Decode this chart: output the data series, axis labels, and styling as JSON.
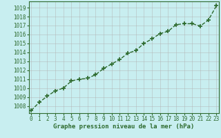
{
  "x": [
    0,
    1,
    2,
    3,
    4,
    5,
    6,
    7,
    8,
    9,
    10,
    11,
    12,
    13,
    14,
    15,
    16,
    17,
    18,
    19,
    20,
    21,
    22,
    23
  ],
  "y": [
    1007.5,
    1008.4,
    1009.1,
    1009.7,
    1010.0,
    1010.8,
    1011.0,
    1011.1,
    1011.5,
    1012.2,
    1012.7,
    1013.2,
    1013.9,
    1014.2,
    1015.0,
    1015.5,
    1016.1,
    1016.35,
    1017.1,
    1017.2,
    1017.2,
    1016.95,
    1017.6,
    1019.2
  ],
  "line_color": "#2d6a2d",
  "marker": "+",
  "marker_size": 4,
  "marker_color": "#2d6a2d",
  "line_width": 1.0,
  "line_style": "--",
  "bg_color": "#c8eef0",
  "grid_color": "#b0b0b0",
  "xlabel": "Graphe pression niveau de la mer (hPa)",
  "xlabel_color": "#2d6a2d",
  "xlabel_fontsize": 6.5,
  "xtick_labels": [
    "0",
    "1",
    "2",
    "3",
    "4",
    "5",
    "6",
    "7",
    "8",
    "9",
    "10",
    "11",
    "12",
    "13",
    "14",
    "15",
    "16",
    "17",
    "18",
    "19",
    "20",
    "21",
    "22",
    "23"
  ],
  "ytick_min": 1008,
  "ytick_max": 1019,
  "ytick_step": 1,
  "tick_fontsize": 5.5,
  "tick_color": "#2d6a2d",
  "border_color": "#2d6a2d",
  "ylim": [
    1007.2,
    1019.7
  ],
  "xlim": [
    -0.3,
    23.3
  ]
}
